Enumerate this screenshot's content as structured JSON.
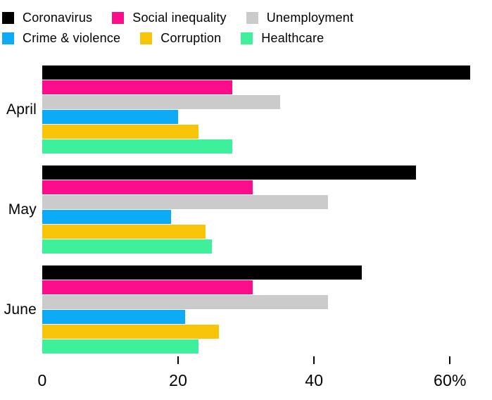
{
  "legend": {
    "rows": [
      [
        {
          "label": "Coronavirus",
          "color": "#000000"
        },
        {
          "label": "Social inequality",
          "color": "#fb0d8b"
        },
        {
          "label": "Unemployment",
          "color": "#cbcbcb"
        }
      ],
      [
        {
          "label": "Crime & violence",
          "color": "#0dabf5"
        },
        {
          "label": "Corruption",
          "color": "#f8c408"
        },
        {
          "label": "Healthcare",
          "color": "#3ef09b"
        }
      ]
    ]
  },
  "chart_data": {
    "type": "bar",
    "orientation": "horizontal",
    "title": "",
    "xlabel": "",
    "ylabel": "",
    "categories": [
      "April",
      "May",
      "June"
    ],
    "series": [
      {
        "name": "Coronavirus",
        "color": "#000000",
        "values": [
          63,
          55,
          47
        ]
      },
      {
        "name": "Social inequality",
        "color": "#fb0d8b",
        "values": [
          28,
          31,
          31
        ]
      },
      {
        "name": "Unemployment",
        "color": "#cbcbcb",
        "values": [
          35,
          42,
          42
        ]
      },
      {
        "name": "Crime & violence",
        "color": "#0dabf5",
        "values": [
          20,
          19,
          21
        ]
      },
      {
        "name": "Corruption",
        "color": "#f8c408",
        "values": [
          23,
          24,
          26
        ]
      },
      {
        "name": "Healthcare",
        "color": "#3ef09b",
        "values": [
          28,
          25,
          23
        ]
      }
    ],
    "xlim": [
      0,
      64
    ],
    "x_ticks": [
      0,
      20,
      40,
      60
    ],
    "x_tick_labels": [
      "0",
      "20",
      "40",
      "60%"
    ],
    "grid": false,
    "legend_position": "top"
  }
}
